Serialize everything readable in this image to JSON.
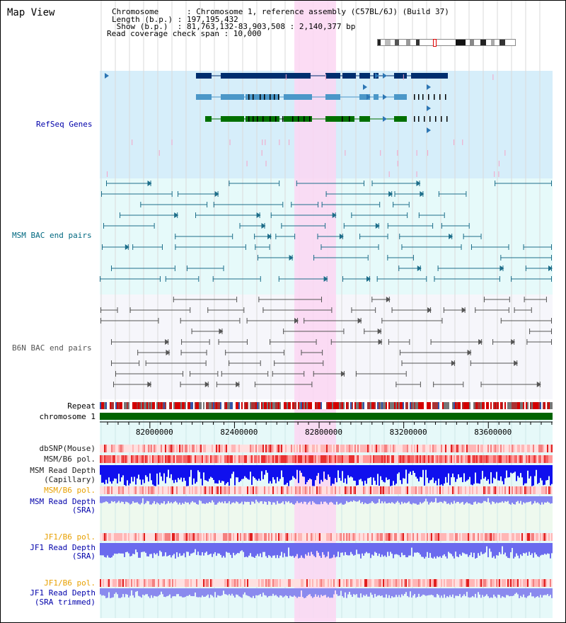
{
  "app": {
    "title": "Map View"
  },
  "info": {
    "chromosome": "Chromosome      : Chromosome 1, reference assembly (C57BL/6J) (Build 37)",
    "length": "Length (b.p.) : 197,195,432",
    "show": " Show (b.p.)  : 81,763,132-83,903,508 : 2,140,377 bp",
    "span": "Read coverage check span : 10,000"
  },
  "tracks": {
    "refseq": "RefSeq Genes",
    "msm_bac": "MSM BAC end pairs",
    "b6n_bac": "B6N BAC end pairs",
    "repeat": "Repeat",
    "chromosome": "chromosome 1",
    "dbsnp": "dbSNP(Mouse)",
    "msm_pol": "MSM/B6 pol.",
    "msm_depth_cap_1": "MSM Read Depth",
    "msm_depth_cap_2": "(Capillary)",
    "msm_pol2": "MSM/B6 pol.",
    "msm_sra_1": "MSM Read Depth",
    "msm_sra_2": "(SRA)",
    "jf1_pol": "JF1/B6 pol.",
    "jf1_sra_1": "JF1 Read Depth",
    "jf1_sra_2": "(SRA)",
    "jf1_pol2": "JF1/B6 pol.",
    "jf1_trim_1": "JF1 Read Depth",
    "jf1_trim_2": "(SRA trimmed)"
  },
  "axis": {
    "ticks": [
      "82000000",
      "82400000",
      "82800000",
      "83200000",
      "83600000"
    ],
    "tick_values": [
      82000000,
      82400000,
      82800000,
      83200000,
      83600000
    ],
    "start": 81763132,
    "end": 83903508
  },
  "highlight": {
    "start": 82683000,
    "end": 82880000
  },
  "colors": {
    "refseq_bg": "#d6eefa",
    "msm_bg": "#e6fafa",
    "b6n_bg": "#f6f6fb",
    "depth_bg": "#e6f9f9",
    "chrom": "#006400",
    "label_blue": "#0000aa",
    "label_teal": "#006880",
    "label_orange": "#e8a000",
    "highlight": "#fbd6f2"
  }
}
